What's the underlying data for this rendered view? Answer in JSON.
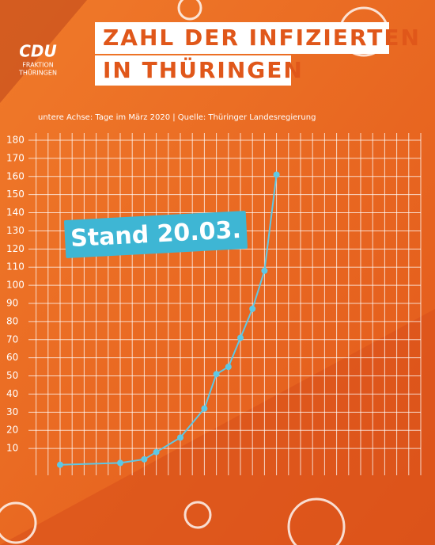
{
  "logo": {
    "name": "CDU",
    "line1": "FRAKTION",
    "line2": "THÜRINGEN"
  },
  "chart_data": {
    "type": "line",
    "title": [
      "ZAHL DER INFIZIERTEN",
      "IN THÜRINGEN"
    ],
    "subtitle": "untere Achse: Tage im März 2020 | Quelle: Thüringer Landesregierung",
    "annotation": "Stand 20.03.",
    "x": [
      2,
      7,
      9,
      10,
      12,
      14,
      15,
      16,
      17,
      18,
      19,
      20
    ],
    "values": [
      1,
      2,
      4,
      8,
      16,
      32,
      51,
      55,
      71,
      87,
      108,
      161
    ],
    "color": "#5ec8e5",
    "xlim": [
      0,
      32
    ],
    "ylim": [
      0,
      180
    ],
    "yticks": [
      10,
      20,
      30,
      40,
      50,
      60,
      70,
      80,
      90,
      100,
      110,
      120,
      130,
      140,
      150,
      160,
      170,
      180
    ],
    "grid": true
  }
}
